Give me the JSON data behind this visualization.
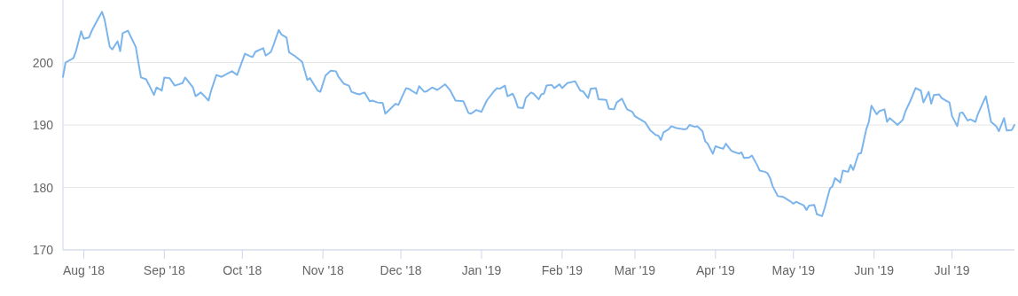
{
  "chart_data": {
    "type": "line",
    "grid": "y",
    "xlim": [
      "2018-07-24",
      "2019-07-25"
    ],
    "xticks": [
      {
        "value": "2018-08-01",
        "label": "Aug '18"
      },
      {
        "value": "2018-09-01",
        "label": "Sep '18"
      },
      {
        "value": "2018-10-01",
        "label": "Oct '18"
      },
      {
        "value": "2018-11-01",
        "label": "Nov '18"
      },
      {
        "value": "2018-12-01",
        "label": "Dec '18"
      },
      {
        "value": "2019-01-01",
        "label": "Jan '19"
      },
      {
        "value": "2019-02-01",
        "label": "Feb '19"
      },
      {
        "value": "2019-03-01",
        "label": "Mar '19"
      },
      {
        "value": "2019-04-01",
        "label": "Apr '19"
      },
      {
        "value": "2019-05-01",
        "label": "May '19"
      },
      {
        "value": "2019-06-01",
        "label": "Jun '19"
      },
      {
        "value": "2019-07-01",
        "label": "Jul '19"
      }
    ],
    "ylim": [
      170,
      210
    ],
    "yticks": [
      170,
      180,
      190,
      200
    ],
    "x": [
      "2018-07-24",
      "2018-07-25",
      "2018-07-28",
      "2018-07-29",
      "2018-07-31",
      "2018-08-01",
      "2018-08-03",
      "2018-08-04",
      "2018-08-06",
      "2018-08-08",
      "2018-08-09",
      "2018-08-11",
      "2018-08-12",
      "2018-08-14",
      "2018-08-15",
      "2018-08-16",
      "2018-08-18",
      "2018-08-19",
      "2018-08-21",
      "2018-08-23",
      "2018-08-25",
      "2018-08-26",
      "2018-08-28",
      "2018-08-29",
      "2018-08-31",
      "2018-09-01",
      "2018-09-03",
      "2018-09-05",
      "2018-09-08",
      "2018-09-09",
      "2018-09-12",
      "2018-09-13",
      "2018-09-15",
      "2018-09-16",
      "2018-09-18",
      "2018-09-19",
      "2018-09-21",
      "2018-09-23",
      "2018-09-27",
      "2018-09-29",
      "2018-10-02",
      "2018-10-04",
      "2018-10-05",
      "2018-10-06",
      "2018-10-09",
      "2018-10-10",
      "2018-10-12",
      "2018-10-13",
      "2018-10-15",
      "2018-10-16",
      "2018-10-18",
      "2018-10-19",
      "2018-10-21",
      "2018-10-24",
      "2018-10-26",
      "2018-10-27",
      "2018-10-30",
      "2018-10-31",
      "2018-11-02",
      "2018-11-04",
      "2018-11-06",
      "2018-11-07",
      "2018-11-09",
      "2018-11-11",
      "2018-11-12",
      "2018-11-14",
      "2018-11-15",
      "2018-11-17",
      "2018-11-19",
      "2018-11-20",
      "2018-11-22",
      "2018-11-24",
      "2018-11-25",
      "2018-11-29",
      "2018-11-30",
      "2018-12-03",
      "2018-12-04",
      "2018-12-07",
      "2018-12-08",
      "2018-12-10",
      "2018-12-11",
      "2018-12-13",
      "2018-12-15",
      "2018-12-17",
      "2018-12-18",
      "2018-12-20",
      "2018-12-22",
      "2018-12-25",
      "2018-12-27",
      "2018-12-28",
      "2018-12-30",
      "2019-01-01",
      "2019-01-03",
      "2019-01-06",
      "2019-01-07",
      "2019-01-08",
      "2019-01-10",
      "2019-01-11",
      "2019-01-13",
      "2019-01-14",
      "2019-01-15",
      "2019-01-17",
      "2019-01-18",
      "2019-01-20",
      "2019-01-21",
      "2019-01-23",
      "2019-01-24",
      "2019-01-25",
      "2019-01-26",
      "2019-01-28",
      "2019-01-29",
      "2019-01-31",
      "2019-02-01",
      "2019-02-03",
      "2019-02-06",
      "2019-02-08",
      "2019-02-09",
      "2019-02-11",
      "2019-02-12",
      "2019-02-14",
      "2019-02-15",
      "2019-02-18",
      "2019-02-19",
      "2019-02-21",
      "2019-02-22",
      "2019-02-24",
      "2019-02-26",
      "2019-02-28",
      "2019-03-01",
      "2019-03-05",
      "2019-03-07",
      "2019-03-09",
      "2019-03-10",
      "2019-03-11",
      "2019-03-12",
      "2019-03-14",
      "2019-03-15",
      "2019-03-17",
      "2019-03-20",
      "2019-03-21",
      "2019-03-22",
      "2019-03-24",
      "2019-03-25",
      "2019-03-27",
      "2019-03-28",
      "2019-03-29",
      "2019-03-31",
      "2019-04-01",
      "2019-04-03",
      "2019-04-04",
      "2019-04-05",
      "2019-04-07",
      "2019-04-08",
      "2019-04-10",
      "2019-04-11",
      "2019-04-12",
      "2019-04-14",
      "2019-04-15",
      "2019-04-17",
      "2019-04-18",
      "2019-04-20",
      "2019-04-21",
      "2019-04-22",
      "2019-04-23",
      "2019-04-25",
      "2019-04-27",
      "2019-04-30",
      "2019-05-01",
      "2019-05-02",
      "2019-05-05",
      "2019-05-06",
      "2019-05-07",
      "2019-05-09",
      "2019-05-10",
      "2019-05-12",
      "2019-05-13",
      "2019-05-15",
      "2019-05-16",
      "2019-05-17",
      "2019-05-19",
      "2019-05-20",
      "2019-05-22",
      "2019-05-23",
      "2019-05-24",
      "2019-05-26",
      "2019-05-27",
      "2019-05-29",
      "2019-05-30",
      "2019-05-31",
      "2019-06-02",
      "2019-06-03",
      "2019-06-05",
      "2019-06-06",
      "2019-06-07",
      "2019-06-09",
      "2019-06-10",
      "2019-06-12",
      "2019-06-13",
      "2019-06-15",
      "2019-06-16",
      "2019-06-17",
      "2019-06-19",
      "2019-06-20",
      "2019-06-22",
      "2019-06-23",
      "2019-06-24",
      "2019-06-26",
      "2019-06-27",
      "2019-06-29",
      "2019-06-30",
      "2019-07-01",
      "2019-07-03",
      "2019-07-04",
      "2019-07-05",
      "2019-07-07",
      "2019-07-08",
      "2019-07-10",
      "2019-07-11",
      "2019-07-14",
      "2019-07-16",
      "2019-07-18",
      "2019-07-19",
      "2019-07-21",
      "2019-07-22",
      "2019-07-24",
      "2019-07-25"
    ],
    "series": [
      {
        "color": "#7cb5ec",
        "values": [
          197.7,
          200.0,
          200.7,
          201.8,
          205.0,
          203.8,
          204.0,
          205.0,
          206.6,
          208.1,
          206.9,
          202.5,
          202.1,
          203.4,
          201.8,
          204.7,
          205.1,
          204.2,
          202.5,
          197.6,
          197.3,
          196.5,
          194.8,
          196.0,
          195.5,
          197.6,
          197.5,
          196.3,
          196.7,
          197.6,
          196.0,
          194.6,
          195.2,
          194.8,
          193.9,
          195.5,
          198.0,
          197.7,
          198.6,
          198.0,
          201.4,
          201.0,
          200.9,
          201.7,
          202.3,
          201.1,
          201.7,
          202.8,
          205.2,
          204.5,
          204.0,
          201.6,
          201.1,
          200.1,
          197.2,
          197.5,
          195.5,
          195.3,
          197.9,
          198.7,
          198.6,
          197.7,
          196.6,
          196.3,
          195.3,
          195.0,
          194.9,
          195.2,
          193.8,
          193.9,
          193.6,
          193.5,
          191.8,
          193.4,
          193.2,
          195.9,
          195.8,
          195.0,
          196.2,
          195.3,
          195.4,
          196.0,
          195.6,
          196.2,
          196.5,
          195.5,
          193.9,
          193.8,
          191.9,
          191.8,
          192.4,
          192.1,
          193.9,
          195.5,
          195.9,
          195.8,
          196.3,
          194.6,
          195.0,
          194.1,
          192.8,
          192.7,
          194.3,
          195.2,
          195.0,
          194.1,
          194.9,
          195.0,
          196.3,
          196.4,
          195.9,
          196.5,
          195.9,
          196.7,
          197.0,
          195.5,
          195.4,
          194.3,
          195.8,
          195.9,
          194.1,
          194.0,
          192.6,
          192.5,
          193.6,
          194.2,
          192.5,
          192.1,
          191.4,
          190.4,
          189.1,
          188.4,
          188.3,
          187.6,
          188.8,
          189.3,
          189.8,
          189.5,
          189.3,
          189.4,
          190.0,
          189.7,
          189.8,
          189.0,
          187.4,
          187.0,
          185.4,
          186.6,
          186.3,
          186.2,
          187.0,
          185.9,
          185.7,
          185.4,
          185.6,
          184.7,
          184.8,
          185.1,
          183.6,
          182.7,
          182.5,
          182.3,
          181.5,
          180.2,
          178.6,
          178.5,
          177.7,
          177.4,
          177.7,
          177.1,
          176.4,
          177.1,
          177.2,
          175.7,
          175.4,
          176.7,
          179.8,
          180.2,
          181.5,
          180.8,
          182.7,
          182.5,
          183.6,
          182.8,
          185.4,
          185.5,
          189.3,
          190.5,
          193.1,
          191.7,
          192.2,
          192.5,
          190.5,
          191.1,
          190.4,
          190.0,
          190.8,
          192.1,
          193.9,
          194.9,
          195.9,
          195.5,
          193.6,
          195.3,
          193.4,
          194.8,
          194.9,
          194.3,
          193.8,
          193.6,
          191.4,
          189.8,
          191.9,
          192.0,
          190.7,
          190.9,
          190.5,
          191.8,
          194.6,
          190.5,
          189.8,
          189.0,
          191.1,
          189.1,
          189.2,
          190.0
        ]
      }
    ]
  }
}
